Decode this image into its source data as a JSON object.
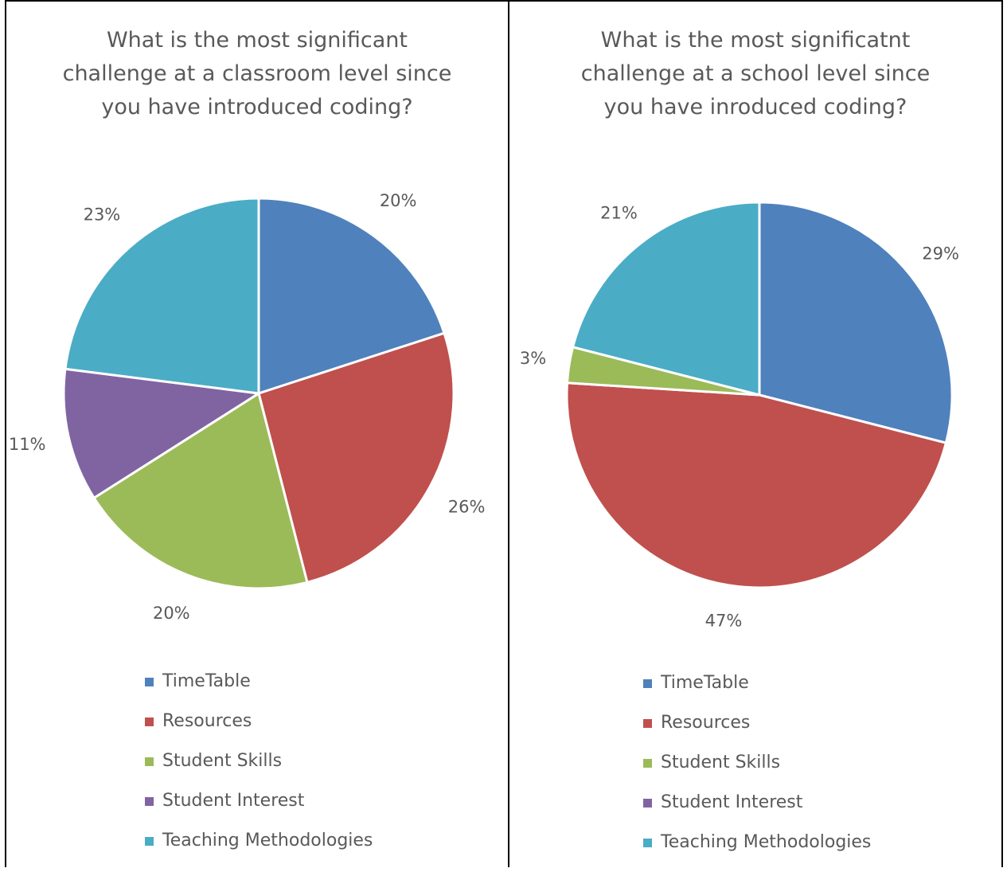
{
  "chart_data": [
    {
      "type": "pie",
      "title": "What is the most significant challenge at a classroom level since you have introduced coding?",
      "title_lines": [
        "What is the most significant",
        "challenge at a classroom level since",
        "you have introduced coding?"
      ],
      "categories": [
        "TimeTable",
        "Resources",
        "Student Skills",
        "Student Interest",
        "Teaching Methodologies"
      ],
      "values": [
        20,
        26,
        20,
        11,
        23
      ],
      "labels": [
        "20%",
        "26%",
        "20%",
        "11%",
        "23%"
      ],
      "legend_position": "bottom"
    },
    {
      "type": "pie",
      "title": "What is the most significatnt challenge at a school level since you have inroduced coding?",
      "title_lines": [
        "What is the most significatnt",
        "challenge at a school level since",
        "you have inroduced coding?"
      ],
      "categories": [
        "TimeTable",
        "Resources",
        "Student Skills",
        "Student Interest",
        "Teaching Methodologies"
      ],
      "values": [
        29,
        47,
        3,
        0,
        21
      ],
      "labels": [
        "29%",
        "47%",
        "3%",
        "",
        "21%"
      ],
      "legend_position": "bottom"
    }
  ],
  "colors": [
    "#4f81bd",
    "#c0504d",
    "#9bbb59",
    "#8064a2",
    "#4bacc6"
  ]
}
